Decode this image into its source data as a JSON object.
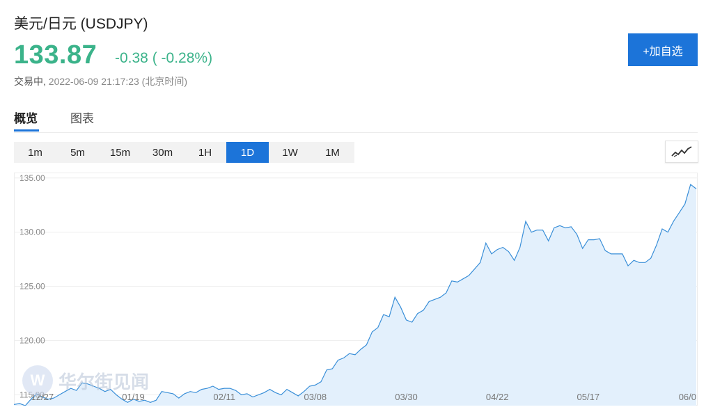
{
  "header": {
    "title": "美元/日元 (USDJPY)",
    "price": "133.87",
    "change": "-0.38 ( -0.28%)",
    "status": "交易中,",
    "timestamp": "2022-06-09 21:17:23 (北京时间)",
    "add_button": "+加自选"
  },
  "tabs": [
    {
      "label": "概览",
      "active": true
    },
    {
      "label": "图表",
      "active": false
    }
  ],
  "intervals": [
    {
      "label": "1m",
      "active": false
    },
    {
      "label": "5m",
      "active": false
    },
    {
      "label": "15m",
      "active": false
    },
    {
      "label": "30m",
      "active": false
    },
    {
      "label": "1H",
      "active": false
    },
    {
      "label": "1D",
      "active": true
    },
    {
      "label": "1W",
      "active": false
    },
    {
      "label": "1M",
      "active": false
    }
  ],
  "chart_type_icon": "line-chart-icon",
  "watermark": {
    "text": "华尔街见闻",
    "logo_letter": "W"
  },
  "colors": {
    "accent": "#1c74d9",
    "up_green": "#3bb38a",
    "line": "#3a8fd8",
    "fill": "#e3f0fc"
  },
  "chart_data": {
    "type": "area",
    "ylim": [
      114,
      135.5
    ],
    "y_ticks": [
      135.0,
      130.0,
      125.0,
      120.0,
      115.0
    ],
    "y_tick_labels": [
      "135.00",
      "130.00",
      "125.00",
      "120.00",
      "115.00"
    ],
    "x_tick_labels": [
      "12/27",
      "01/19",
      "02/11",
      "03/08",
      "03/30",
      "04/22",
      "05/17",
      "06/0"
    ],
    "x_tick_index": [
      5,
      21,
      37,
      53,
      69,
      85,
      101,
      117
    ],
    "series": [
      {
        "values": [
          114.1,
          114.2,
          114.0,
          114.6,
          115.1,
          114.8,
          114.6,
          114.7,
          115.0,
          115.3,
          115.6,
          115.4,
          116.1,
          116.0,
          115.8,
          115.6,
          115.3,
          115.5,
          115.0,
          114.6,
          114.3,
          114.6,
          114.4,
          114.5,
          114.3,
          114.5,
          115.3,
          115.2,
          115.1,
          114.7,
          115.1,
          115.3,
          115.2,
          115.5,
          115.6,
          115.8,
          115.5,
          115.6,
          115.6,
          115.4,
          115.0,
          115.1,
          114.8,
          115.0,
          115.2,
          115.5,
          115.2,
          115.0,
          115.5,
          115.2,
          114.9,
          115.3,
          115.8,
          115.9,
          116.2,
          117.3,
          117.4,
          118.2,
          118.4,
          118.8,
          118.7,
          119.2,
          119.6,
          120.8,
          121.2,
          122.4,
          122.2,
          124.0,
          123.1,
          121.9,
          121.7,
          122.5,
          122.8,
          123.6,
          123.8,
          124.0,
          124.4,
          125.5,
          125.4,
          125.7,
          126.0,
          126.6,
          127.2,
          129.0,
          128.0,
          128.4,
          128.6,
          128.2,
          127.4,
          128.6,
          131.0,
          130.0,
          130.2,
          130.2,
          129.2,
          130.4,
          130.6,
          130.4,
          130.5,
          129.8,
          128.5,
          129.3,
          129.3,
          129.4,
          128.3,
          128.0,
          128.0,
          128.0,
          126.9,
          127.4,
          127.2,
          127.2,
          127.6,
          128.8,
          130.3,
          130.0,
          131.0,
          131.8,
          132.6,
          134.4,
          134.0
        ]
      }
    ]
  }
}
